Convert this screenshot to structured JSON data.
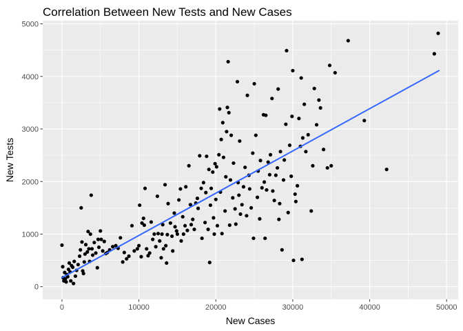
{
  "chart_data": {
    "type": "scatter",
    "title": "Correlation Between New Tests and New Cases",
    "xlabel": "New Cases",
    "ylabel": "New Tests",
    "xlim": [
      -2500,
      51500
    ],
    "ylim": [
      -240,
      5060
    ],
    "xticks": [
      0,
      10000,
      20000,
      30000,
      40000,
      50000
    ],
    "yticks": [
      0,
      1000,
      2000,
      3000,
      4000,
      5000
    ],
    "xtick_labels": [
      "0",
      "10000",
      "20000",
      "30000",
      "40000",
      "50000"
    ],
    "ytick_labels": [
      "0",
      "1000",
      "2000",
      "3000",
      "4000",
      "5000"
    ],
    "grid": true,
    "background": "#ebebeb",
    "point_color": "#000000",
    "trend_color": "#3366ff",
    "trend_line": {
      "x": [
        0,
        49000
      ],
      "y": [
        170,
        4110
      ]
    },
    "points": [
      [
        0,
        790
      ],
      [
        100,
        380
      ],
      [
        150,
        170
      ],
      [
        250,
        110
      ],
      [
        350,
        270
      ],
      [
        450,
        150
      ],
      [
        550,
        90
      ],
      [
        650,
        230
      ],
      [
        750,
        190
      ],
      [
        850,
        330
      ],
      [
        950,
        450
      ],
      [
        1050,
        280
      ],
      [
        1150,
        110
      ],
      [
        1250,
        400
      ],
      [
        1400,
        370
      ],
      [
        1500,
        60
      ],
      [
        1600,
        480
      ],
      [
        1750,
        200
      ],
      [
        1900,
        310
      ],
      [
        2100,
        420
      ],
      [
        2300,
        580
      ],
      [
        2400,
        700
      ],
      [
        2500,
        1500
      ],
      [
        2600,
        850
      ],
      [
        2700,
        300
      ],
      [
        2800,
        250
      ],
      [
        2900,
        470
      ],
      [
        3000,
        620
      ],
      [
        3100,
        800
      ],
      [
        3300,
        660
      ],
      [
        3400,
        1050
      ],
      [
        3500,
        720
      ],
      [
        3600,
        480
      ],
      [
        3700,
        1000
      ],
      [
        3800,
        1740
      ],
      [
        3900,
        720
      ],
      [
        4000,
        600
      ],
      [
        4200,
        840
      ],
      [
        4400,
        640
      ],
      [
        4600,
        360
      ],
      [
        4700,
        900
      ],
      [
        4800,
        750
      ],
      [
        5000,
        1060
      ],
      [
        5100,
        900
      ],
      [
        5300,
        680
      ],
      [
        5500,
        860
      ],
      [
        5700,
        630
      ],
      [
        5900,
        650
      ],
      [
        6200,
        700
      ],
      [
        6600,
        760
      ],
      [
        7000,
        780
      ],
      [
        7300,
        730
      ],
      [
        7600,
        930
      ],
      [
        7900,
        470
      ],
      [
        8100,
        650
      ],
      [
        8400,
        530
      ],
      [
        8700,
        580
      ],
      [
        9100,
        1160
      ],
      [
        9400,
        680
      ],
      [
        9800,
        720
      ],
      [
        10000,
        780
      ],
      [
        10100,
        1550
      ],
      [
        10300,
        570
      ],
      [
        10400,
        1210
      ],
      [
        10600,
        1300
      ],
      [
        10700,
        1170
      ],
      [
        10800,
        1870
      ],
      [
        11000,
        720
      ],
      [
        11200,
        590
      ],
      [
        11400,
        640
      ],
      [
        11600,
        1230
      ],
      [
        11800,
        900
      ],
      [
        12000,
        1000
      ],
      [
        12200,
        760
      ],
      [
        12400,
        1720
      ],
      [
        12500,
        1010
      ],
      [
        12700,
        870
      ],
      [
        12900,
        550
      ],
      [
        13000,
        1000
      ],
      [
        13100,
        1180
      ],
      [
        13200,
        720
      ],
      [
        13400,
        1940
      ],
      [
        13500,
        780
      ],
      [
        13600,
        450
      ],
      [
        13700,
        990
      ],
      [
        13800,
        1580
      ],
      [
        14100,
        1210
      ],
      [
        14300,
        960
      ],
      [
        14400,
        680
      ],
      [
        14600,
        1400
      ],
      [
        14700,
        1140
      ],
      [
        14900,
        1060
      ],
      [
        15000,
        1000
      ],
      [
        15200,
        1650
      ],
      [
        15400,
        1860
      ],
      [
        15500,
        870
      ],
      [
        15700,
        1330
      ],
      [
        15800,
        1000
      ],
      [
        16000,
        1160
      ],
      [
        16100,
        1900
      ],
      [
        16300,
        1070
      ],
      [
        16500,
        2300
      ],
      [
        16700,
        1560
      ],
      [
        16800,
        1180
      ],
      [
        17000,
        1280
      ],
      [
        17200,
        1090
      ],
      [
        17400,
        1590
      ],
      [
        17600,
        1680
      ],
      [
        17700,
        1490
      ],
      [
        17900,
        2490
      ],
      [
        18100,
        1870
      ],
      [
        18200,
        920
      ],
      [
        18400,
        1980
      ],
      [
        18600,
        1220
      ],
      [
        18700,
        1790
      ],
      [
        18800,
        2480
      ],
      [
        19000,
        1090
      ],
      [
        19100,
        2230
      ],
      [
        19200,
        460
      ],
      [
        19300,
        1550
      ],
      [
        19400,
        1870
      ],
      [
        19600,
        2180
      ],
      [
        19700,
        1310
      ],
      [
        19800,
        1000
      ],
      [
        19900,
        2340
      ],
      [
        20000,
        1660
      ],
      [
        20100,
        2280
      ],
      [
        20200,
        1160
      ],
      [
        20400,
        2510
      ],
      [
        20500,
        3380
      ],
      [
        20600,
        1800
      ],
      [
        20700,
        2800
      ],
      [
        20800,
        1010
      ],
      [
        20900,
        3120
      ],
      [
        21000,
        2460
      ],
      [
        21200,
        1440
      ],
      [
        21300,
        2090
      ],
      [
        21400,
        2950
      ],
      [
        21500,
        3410
      ],
      [
        21600,
        4280
      ],
      [
        21700,
        3310
      ],
      [
        21800,
        1170
      ],
      [
        21900,
        2030
      ],
      [
        22000,
        2880
      ],
      [
        22200,
        1690
      ],
      [
        22300,
        2350
      ],
      [
        22500,
        1480
      ],
      [
        22600,
        1190
      ],
      [
        22800,
        3900
      ],
      [
        22900,
        1980
      ],
      [
        23000,
        1740
      ],
      [
        23100,
        2770
      ],
      [
        23200,
        1380
      ],
      [
        23400,
        1560
      ],
      [
        23600,
        1900
      ],
      [
        23800,
        2270
      ],
      [
        24000,
        1350
      ],
      [
        24100,
        3640
      ],
      [
        24300,
        2120
      ],
      [
        24400,
        1860
      ],
      [
        24600,
        1500
      ],
      [
        24800,
        2540
      ],
      [
        24900,
        920
      ],
      [
        25000,
        3860
      ],
      [
        25200,
        2880
      ],
      [
        25400,
        1700
      ],
      [
        25500,
        2200
      ],
      [
        25700,
        1290
      ],
      [
        25800,
        2400
      ],
      [
        26000,
        1880
      ],
      [
        26200,
        3270
      ],
      [
        26300,
        1990
      ],
      [
        26400,
        920
      ],
      [
        26500,
        3260
      ],
      [
        26600,
        1840
      ],
      [
        26800,
        2370
      ],
      [
        27000,
        2130
      ],
      [
        27100,
        2510
      ],
      [
        27300,
        3580
      ],
      [
        27400,
        1820
      ],
      [
        27600,
        1640
      ],
      [
        27800,
        2120
      ],
      [
        28000,
        2260
      ],
      [
        28100,
        3760
      ],
      [
        28200,
        1280
      ],
      [
        28300,
        1580
      ],
      [
        28400,
        2570
      ],
      [
        28600,
        700
      ],
      [
        28800,
        2030
      ],
      [
        28900,
        2410
      ],
      [
        29100,
        3090
      ],
      [
        29200,
        4490
      ],
      [
        29400,
        1410
      ],
      [
        29600,
        2690
      ],
      [
        29800,
        2100
      ],
      [
        29900,
        3240
      ],
      [
        30000,
        4110
      ],
      [
        30100,
        500
      ],
      [
        30300,
        1760
      ],
      [
        30400,
        1620
      ],
      [
        30600,
        1920
      ],
      [
        30800,
        3200
      ],
      [
        31000,
        2670
      ],
      [
        31100,
        3970
      ],
      [
        31200,
        520
      ],
      [
        31300,
        2830
      ],
      [
        31500,
        3470
      ],
      [
        31700,
        2570
      ],
      [
        32000,
        2890
      ],
      [
        32400,
        1440
      ],
      [
        32600,
        2300
      ],
      [
        32800,
        3770
      ],
      [
        33100,
        3080
      ],
      [
        33400,
        3550
      ],
      [
        33600,
        3400
      ],
      [
        34000,
        2610
      ],
      [
        34500,
        2260
      ],
      [
        34800,
        4210
      ],
      [
        35000,
        2300
      ],
      [
        35500,
        4070
      ],
      [
        37200,
        4680
      ],
      [
        39300,
        3160
      ],
      [
        42200,
        2230
      ],
      [
        48400,
        4430
      ],
      [
        48900,
        4820
      ]
    ]
  }
}
